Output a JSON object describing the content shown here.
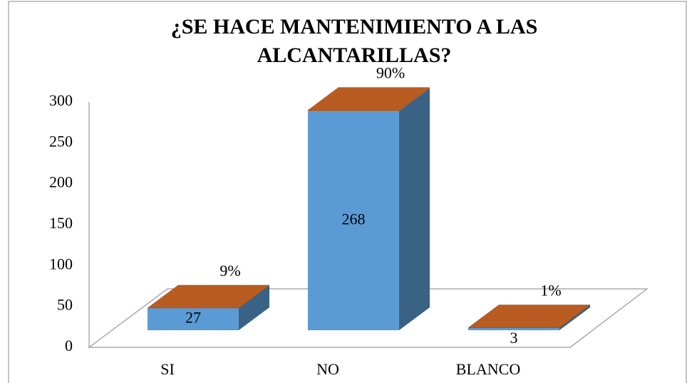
{
  "chart_data": {
    "type": "bar3d",
    "title": "¿SE HACE MANTENIMIENTO A LAS ALCANTARILLAS?",
    "categories": [
      "SI",
      "NO",
      "BLANCO"
    ],
    "series": [
      {
        "color": "#5b9bd5",
        "values": [
          27,
          268,
          3
        ]
      },
      {
        "color": "#b85c21",
        "values": [
          0.09,
          0.9,
          0.01
        ],
        "value_labels": [
          "9%",
          "90%",
          "1%"
        ]
      }
    ],
    "ylim": [
      0,
      300
    ],
    "yticks": [
      0,
      50,
      100,
      150,
      200,
      250,
      300
    ]
  }
}
